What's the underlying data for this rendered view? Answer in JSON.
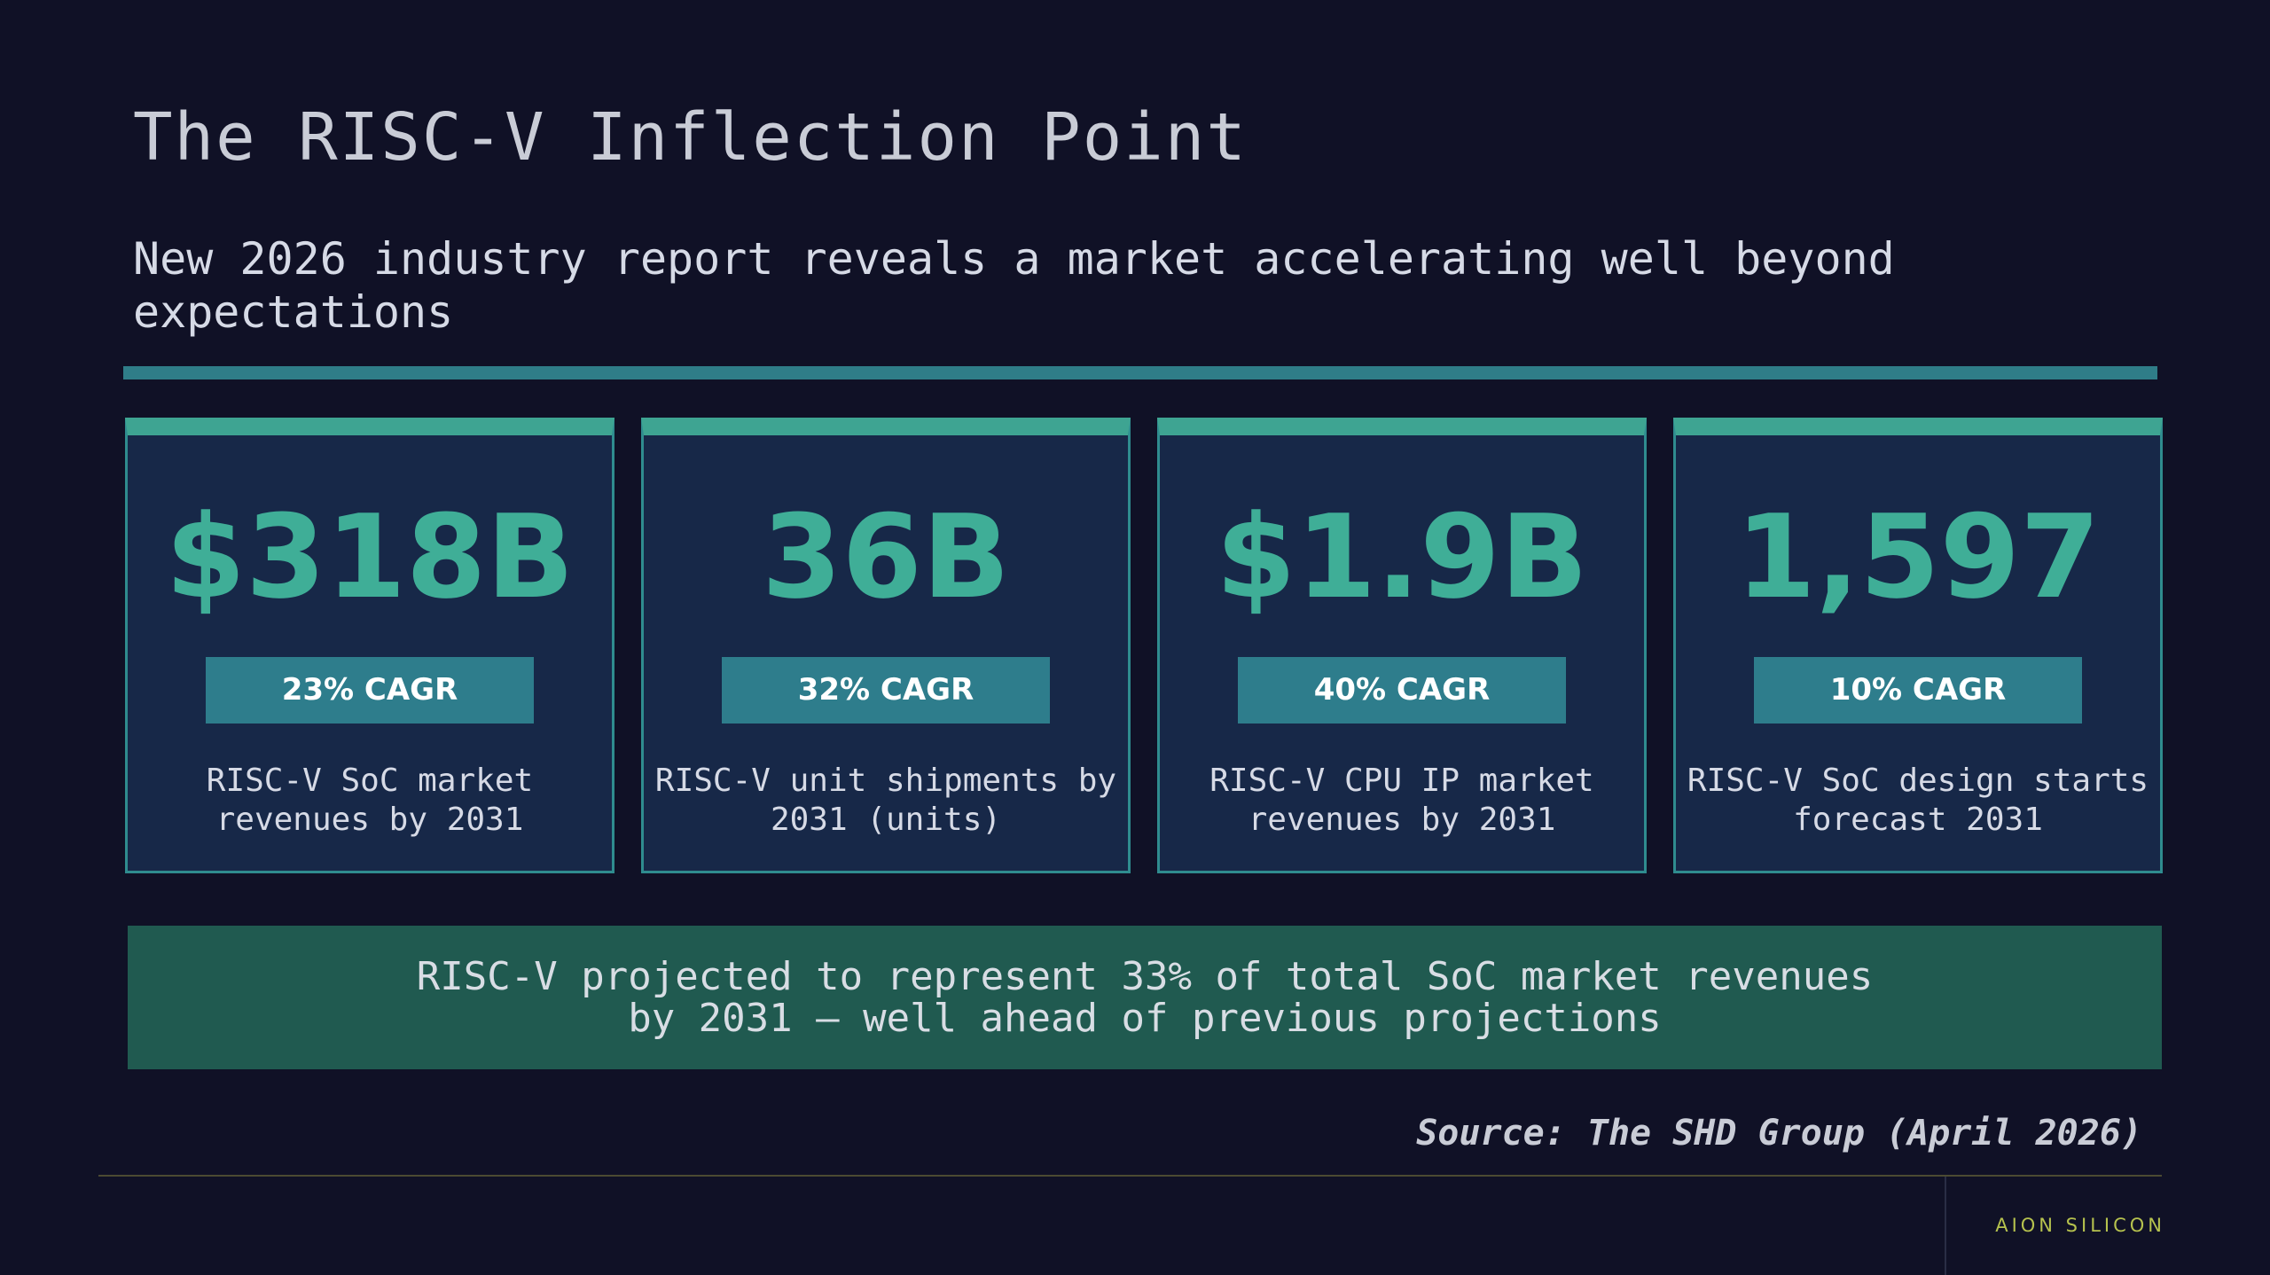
{
  "slide": {
    "title": "The RISC-V Inflection Point",
    "subtitle": "New 2026 industry report reveals a market accelerating well beyond expectations"
  },
  "stats": [
    {
      "value": "$318B",
      "badge": "23% CAGR",
      "description": "RISC-V SoC market revenues by 2031"
    },
    {
      "value": "36B",
      "badge": "32% CAGR",
      "description": "RISC-V unit shipments by 2031 (units)"
    },
    {
      "value": "$1.9B",
      "badge": "40% CAGR",
      "description": "RISC-V CPU IP market revenues by 2031"
    },
    {
      "value": "1,597",
      "badge": "10% CAGR",
      "description": "RISC-V SoC design starts forecast 2031"
    }
  ],
  "callout": "RISC-V projected to represent 33% of total SoC market revenues by 2031 — well ahead of previous projections",
  "source": "Source: The SHD Group (April 2026)",
  "footer": {
    "brand": "AION SILICON"
  },
  "colors": {
    "background": "#101126",
    "accent_teal": "#3fae97",
    "badge": "#2e7d8c",
    "card": "#172848",
    "callout": "#205a50",
    "brand": "#b6c24e"
  }
}
